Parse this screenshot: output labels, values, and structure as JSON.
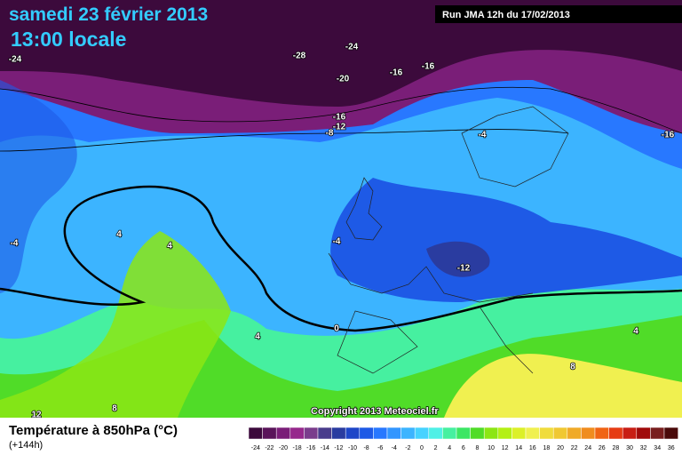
{
  "header": {
    "title": "samedi 23 février 2013",
    "time": "13:00 locale",
    "run": "Run JMA 12h du 17/02/2013"
  },
  "map": {
    "contour_labels": [
      "-24",
      "-28",
      "-24",
      "-16",
      "-16",
      "-20",
      "-16",
      "-12",
      "-8",
      "-4",
      "-16",
      "-4",
      "4",
      "4",
      "-4",
      "-12",
      "0",
      "4",
      "4",
      "8",
      "8",
      "12"
    ],
    "copyright": "Copyright 2013 Meteociel.fr"
  },
  "legend": {
    "title": "Température à 850hPa (°C)",
    "lead_time": "(+144h)",
    "ticks": [
      -24,
      -22,
      -20,
      -18,
      -16,
      -14,
      -12,
      -10,
      -8,
      -6,
      -4,
      -2,
      0,
      2,
      4,
      6,
      8,
      10,
      12,
      14,
      16,
      18,
      20,
      22,
      24,
      26,
      28,
      30,
      32,
      34,
      36
    ],
    "colors": [
      "#3c0a3c",
      "#5a145a",
      "#7a1e78",
      "#96288c",
      "#7a3c8c",
      "#4a3c8c",
      "#2a3ca0",
      "#1e46c8",
      "#1e5ae6",
      "#2878ff",
      "#3296ff",
      "#3cb4ff",
      "#46d2ff",
      "#50f0e6",
      "#46f0a0",
      "#3ce664",
      "#50dc28",
      "#8ce614",
      "#b4f014",
      "#dcf028",
      "#f0f050",
      "#f0dc3c",
      "#f0c832",
      "#f0aa28",
      "#f08c1e",
      "#f06414",
      "#e63c14",
      "#c81e14",
      "#a00a0a",
      "#781e1e",
      "#4a0a0a"
    ]
  }
}
